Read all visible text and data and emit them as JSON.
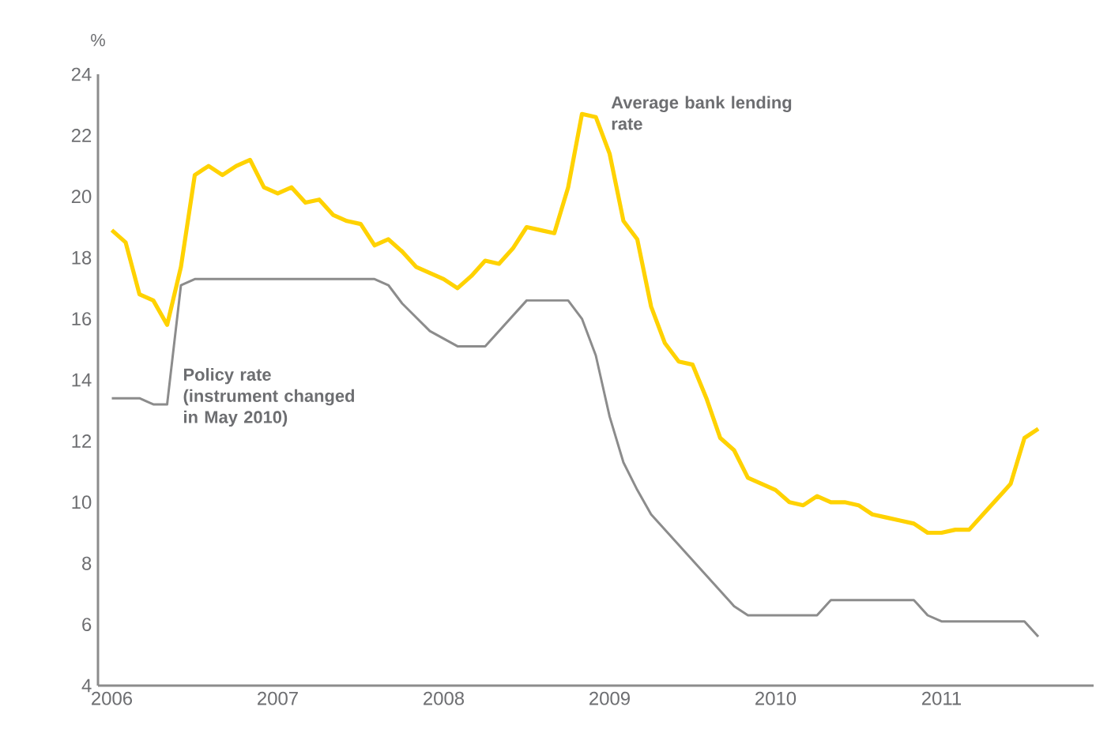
{
  "chart_data": {
    "type": "line",
    "ylabel": "%",
    "x": [
      "2006-01",
      "2006-02",
      "2006-03",
      "2006-04",
      "2006-05",
      "2006-06",
      "2006-07",
      "2006-08",
      "2006-09",
      "2006-10",
      "2006-11",
      "2006-12",
      "2007-01",
      "2007-02",
      "2007-03",
      "2007-04",
      "2007-05",
      "2007-06",
      "2007-07",
      "2007-08",
      "2007-09",
      "2007-10",
      "2007-11",
      "2007-12",
      "2008-01",
      "2008-02",
      "2008-03",
      "2008-04",
      "2008-05",
      "2008-06",
      "2008-07",
      "2008-08",
      "2008-09",
      "2008-10",
      "2008-11",
      "2008-12",
      "2009-01",
      "2009-02",
      "2009-03",
      "2009-04",
      "2009-05",
      "2009-06",
      "2009-07",
      "2009-08",
      "2009-09",
      "2009-10",
      "2009-11",
      "2009-12",
      "2010-01",
      "2010-02",
      "2010-03",
      "2010-04",
      "2010-05",
      "2010-06",
      "2010-07",
      "2010-08",
      "2010-09",
      "2010-10",
      "2010-11",
      "2010-12",
      "2011-01",
      "2011-02",
      "2011-03",
      "2011-04",
      "2011-05",
      "2011-06",
      "2011-07",
      "2011-08"
    ],
    "series": [
      {
        "name": "Average bank lending rate",
        "color": "#ffd200",
        "values": [
          18.9,
          18.5,
          16.8,
          16.6,
          15.8,
          17.7,
          20.7,
          21.0,
          20.7,
          21.0,
          21.2,
          20.3,
          20.1,
          20.3,
          19.8,
          19.9,
          19.4,
          19.2,
          19.1,
          18.4,
          18.6,
          18.2,
          17.7,
          17.5,
          17.3,
          17.0,
          17.4,
          17.9,
          17.8,
          18.3,
          19.0,
          18.9,
          18.8,
          20.3,
          22.7,
          22.6,
          21.4,
          19.2,
          18.6,
          16.4,
          15.2,
          14.6,
          14.5,
          13.4,
          12.1,
          11.7,
          10.8,
          10.6,
          10.4,
          10.0,
          9.9,
          10.2,
          10.0,
          10.0,
          9.9,
          9.6,
          9.5,
          9.4,
          9.3,
          9.0,
          9.0,
          9.1,
          9.1,
          9.6,
          10.1,
          10.6,
          12.1,
          12.4
        ]
      },
      {
        "name": "Policy rate (instrument changed in May 2010)",
        "color": "#8c8c8c",
        "x": [
          "2006-01",
          "2006-03",
          "2006-04",
          "2006-05",
          "2006-06",
          "2006-07",
          "2007-08",
          "2007-09",
          "2007-10",
          "2007-12",
          "2008-02",
          "2008-04",
          "2008-07",
          "2008-10",
          "2008-11",
          "2008-12",
          "2009-01",
          "2009-02",
          "2009-03",
          "2009-04",
          "2009-10",
          "2009-11",
          "2010-04",
          "2010-05",
          "2010-11",
          "2010-12",
          "2011-01",
          "2011-07",
          "2011-08"
        ],
        "values": [
          13.4,
          13.4,
          13.2,
          13.2,
          17.1,
          17.3,
          17.3,
          17.1,
          16.5,
          15.6,
          15.1,
          15.1,
          16.6,
          16.6,
          16.0,
          14.8,
          12.8,
          11.3,
          10.4,
          9.6,
          6.6,
          6.3,
          6.3,
          6.8,
          6.8,
          6.3,
          6.1,
          6.1,
          5.6
        ]
      }
    ],
    "xlim": [
      "2005-12",
      "2011-12"
    ],
    "xticks": [
      {
        "value": "2006-01",
        "label": "2006"
      },
      {
        "value": "2007-01",
        "label": "2007"
      },
      {
        "value": "2008-01",
        "label": "2008"
      },
      {
        "value": "2009-01",
        "label": "2009"
      },
      {
        "value": "2010-01",
        "label": "2010"
      },
      {
        "value": "2011-01",
        "label": "2011"
      }
    ],
    "ylim": [
      4,
      24
    ],
    "yticks": [
      4,
      6,
      8,
      10,
      12,
      14,
      16,
      18,
      20,
      22,
      24
    ],
    "grid": false,
    "legend": false,
    "marker": "none",
    "line_style": "solid"
  }
}
